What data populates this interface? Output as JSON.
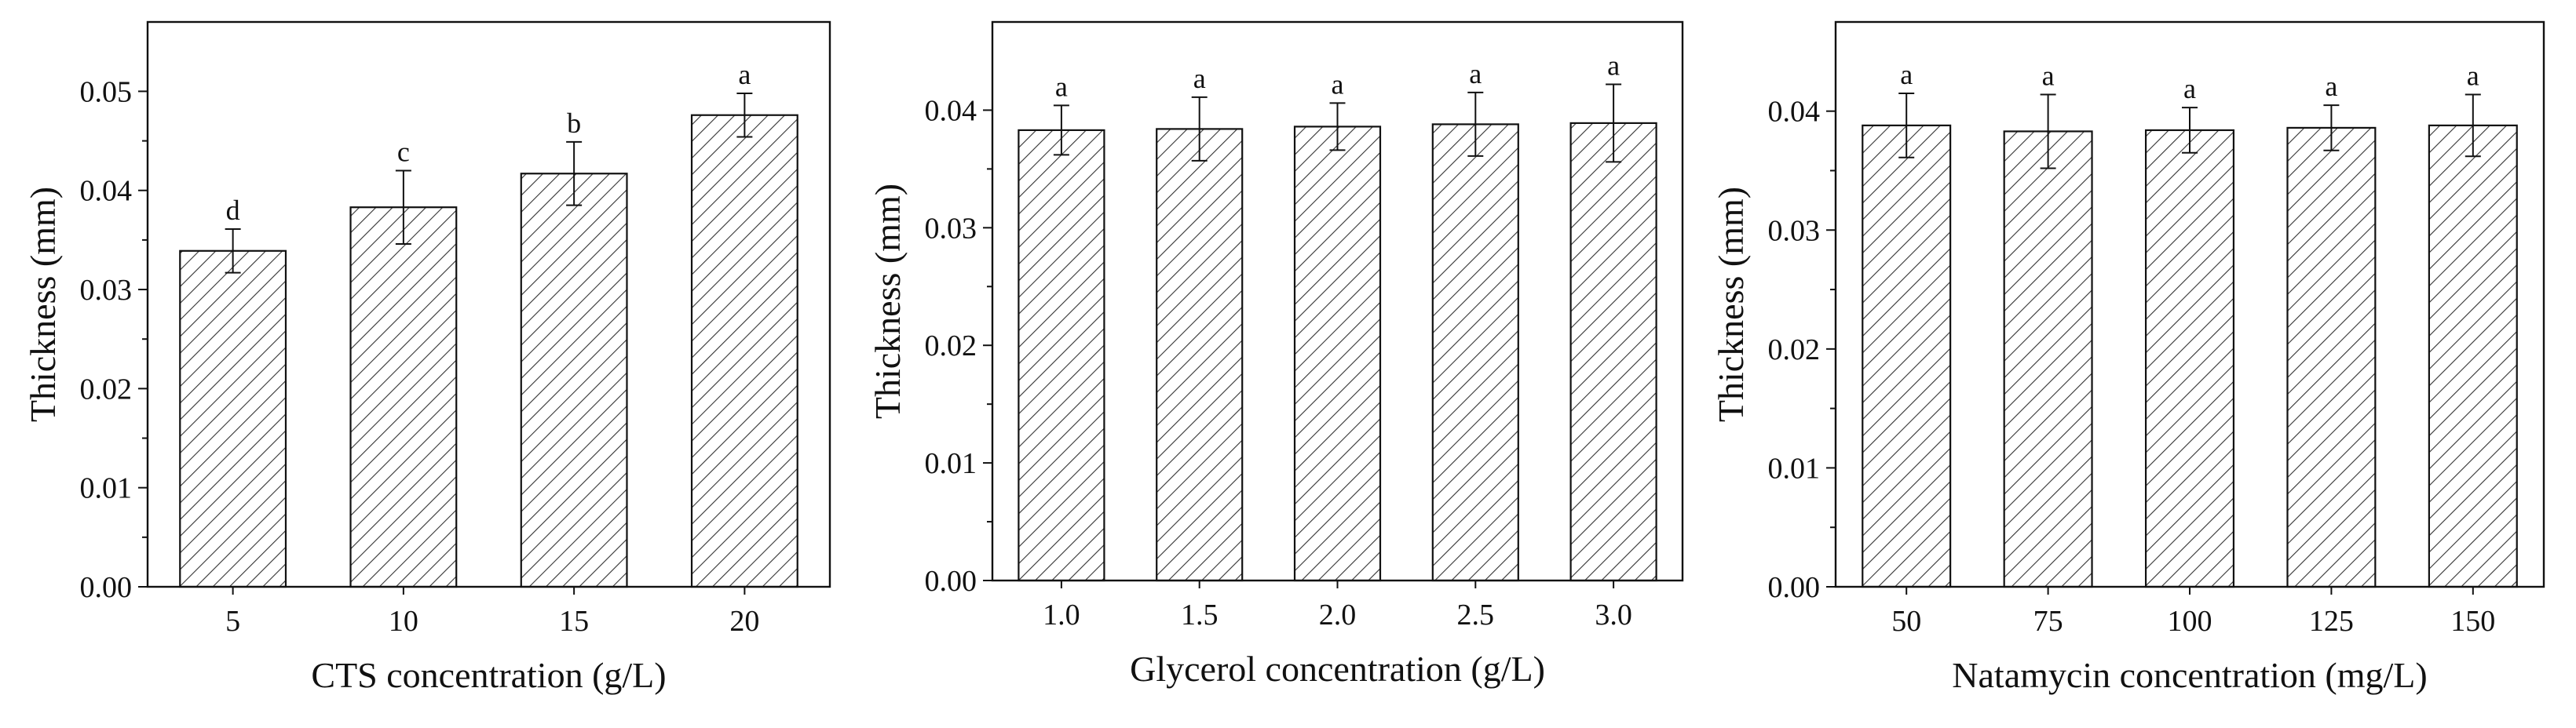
{
  "chart_data": [
    {
      "type": "bar",
      "xlabel": "CTS concentration (g/L)",
      "ylabel": "Thickness (mm)",
      "ylim": [
        0,
        0.057
      ],
      "yticks": [
        0,
        0.01,
        0.02,
        0.03,
        0.04,
        0.05
      ],
      "ytick_labels": [
        "0.00",
        "0.01",
        "0.02",
        "0.03",
        "0.04",
        "0.05"
      ],
      "categories": [
        "5",
        "10",
        "15",
        "20"
      ],
      "values": [
        0.0339,
        0.0383,
        0.0417,
        0.0476
      ],
      "errors": [
        0.0022,
        0.0037,
        0.0032,
        0.0022
      ],
      "letters": [
        "d",
        "c",
        "b",
        "a"
      ],
      "fill_pattern": "diagonal-hatch",
      "grid": false
    },
    {
      "type": "bar",
      "xlabel": "Glycerol concentration (g/L)",
      "ylabel": "Thickness (mm)",
      "ylim": [
        0,
        0.0475
      ],
      "yticks": [
        0,
        0.01,
        0.02,
        0.03,
        0.04
      ],
      "ytick_labels": [
        "0.00",
        "0.01",
        "0.02",
        "0.03",
        "0.04"
      ],
      "categories": [
        "1.0",
        "1.5",
        "2.0",
        "2.5",
        "3.0"
      ],
      "values": [
        0.0383,
        0.0384,
        0.0386,
        0.0388,
        0.0389
      ],
      "errors": [
        0.0021,
        0.0027,
        0.002,
        0.0027,
        0.0033
      ],
      "letters": [
        "a",
        "a",
        "a",
        "a",
        "a"
      ],
      "fill_pattern": "diagonal-hatch",
      "grid": false
    },
    {
      "type": "bar",
      "xlabel": "Natamycin concentration (mg/L)",
      "ylabel": "Thickness (mm)",
      "ylim": [
        0,
        0.0475
      ],
      "yticks": [
        0,
        0.01,
        0.02,
        0.03,
        0.04
      ],
      "ytick_labels": [
        "0.00",
        "0.01",
        "0.02",
        "0.03",
        "0.04"
      ],
      "categories": [
        "50",
        "75",
        "100",
        "125",
        "150"
      ],
      "values": [
        0.0388,
        0.0383,
        0.0384,
        0.0386,
        0.0388
      ],
      "errors": [
        0.0027,
        0.0031,
        0.0019,
        0.0019,
        0.0026
      ],
      "letters": [
        "a",
        "a",
        "a",
        "a",
        "a"
      ],
      "fill_pattern": "diagonal-hatch",
      "grid": false
    }
  ]
}
